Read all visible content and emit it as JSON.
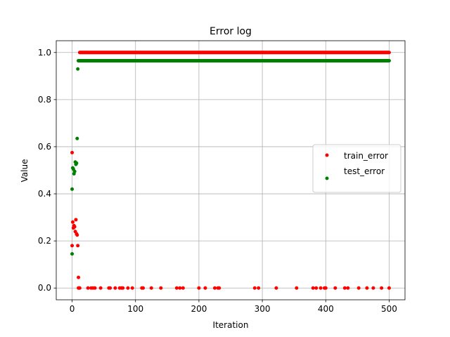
{
  "chart_data": {
    "type": "scatter",
    "title": "Error log",
    "xlabel": "Iteration",
    "ylabel": "Value",
    "xlim": [
      -25,
      525
    ],
    "ylim": [
      -0.05,
      1.05
    ],
    "xticks": [
      0,
      100,
      200,
      300,
      400,
      500
    ],
    "yticks": [
      0.0,
      0.2,
      0.4,
      0.6,
      0.8,
      1.0
    ],
    "xtick_labels": [
      "0",
      "100",
      "200",
      "300",
      "400",
      "500"
    ],
    "ytick_labels": [
      "0.0",
      "0.2",
      "0.4",
      "0.6",
      "0.8",
      "1.0"
    ],
    "grid": true,
    "legend_position": "center-right",
    "series": [
      {
        "name": "train_error",
        "color": "#ff0000",
        "early_points": [
          [
            0,
            0.575
          ],
          [
            0,
            0.18
          ],
          [
            1,
            0.28
          ],
          [
            2,
            0.255
          ],
          [
            3,
            0.265
          ],
          [
            4,
            0.26
          ],
          [
            5,
            0.24
          ],
          [
            6,
            0.29
          ],
          [
            7,
            0.23
          ],
          [
            8,
            0.225
          ],
          [
            9,
            0.18
          ],
          [
            10,
            0.045
          ],
          [
            10,
            0.0
          ],
          [
            11,
            0.0
          ],
          [
            12,
            0.0
          ]
        ],
        "plateau_value": 1.0,
        "plateau_start": 12,
        "plateau_end": 500,
        "zero_points_x": [
          25,
          30,
          33,
          36,
          45,
          58,
          60,
          68,
          75,
          78,
          80,
          88,
          95,
          110,
          112,
          125,
          140,
          165,
          170,
          175,
          200,
          210,
          225,
          230,
          232,
          288,
          294,
          322,
          354,
          380,
          385,
          392,
          398,
          400,
          415,
          430,
          435,
          452,
          465,
          475,
          488,
          500
        ]
      },
      {
        "name": "test_error",
        "color": "#008000",
        "early_points": [
          [
            0,
            0.42
          ],
          [
            0,
            0.145
          ],
          [
            1,
            0.51
          ],
          [
            2,
            0.505
          ],
          [
            3,
            0.485
          ],
          [
            4,
            0.495
          ],
          [
            5,
            0.535
          ],
          [
            6,
            0.525
          ],
          [
            7,
            0.53
          ],
          [
            8,
            0.635
          ],
          [
            9,
            0.93
          ],
          [
            10,
            0.965
          ]
        ],
        "plateau_value": 0.965,
        "plateau_start": 10,
        "plateau_end": 500
      }
    ]
  }
}
